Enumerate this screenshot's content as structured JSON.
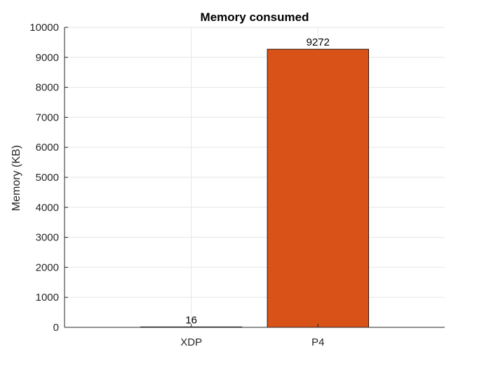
{
  "chart_data": {
    "type": "bar",
    "title": "Memory consumed",
    "xlabel": "",
    "ylabel": "Memory (KB)",
    "categories": [
      "XDP",
      "P4"
    ],
    "values": [
      16,
      9272
    ],
    "data_labels": [
      "16",
      "9272"
    ],
    "ylim": [
      0,
      10000
    ],
    "yticks": [
      0,
      1000,
      2000,
      3000,
      4000,
      5000,
      6000,
      7000,
      8000,
      9000,
      10000
    ],
    "ytick_labels": [
      "0",
      "1000",
      "2000",
      "3000",
      "4000",
      "5000",
      "6000",
      "7000",
      "8000",
      "9000",
      "10000"
    ],
    "grid": true,
    "colors": {
      "bar": "#D95319",
      "bar_edge": "#000000",
      "grid": "#E6E6E6",
      "axis": "#262626"
    }
  }
}
